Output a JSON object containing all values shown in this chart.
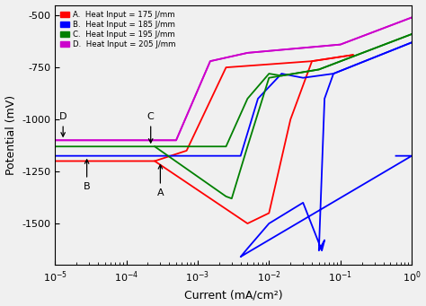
{
  "title": "",
  "xlabel": "Current (mA/cm²)",
  "ylabel": "Potential (mV)",
  "xlim": [
    1e-05,
    1.0
  ],
  "ylim": [
    -1700,
    -450
  ],
  "yticks": [
    -500,
    -750,
    -1000,
    -1250,
    -1500
  ],
  "legend_lines": [
    "A.  Heat Input = 175 J/mm",
    "B.  Heat Input = 185 J/mm",
    "C.  Heat Input = 195 J/mm",
    "D.  Heat Input = 205 J/mm"
  ],
  "colors": {
    "A": "#ff0000",
    "B": "#0000ff",
    "C": "#008000",
    "D": "#cc00cc"
  },
  "background": "#f0f0f0"
}
